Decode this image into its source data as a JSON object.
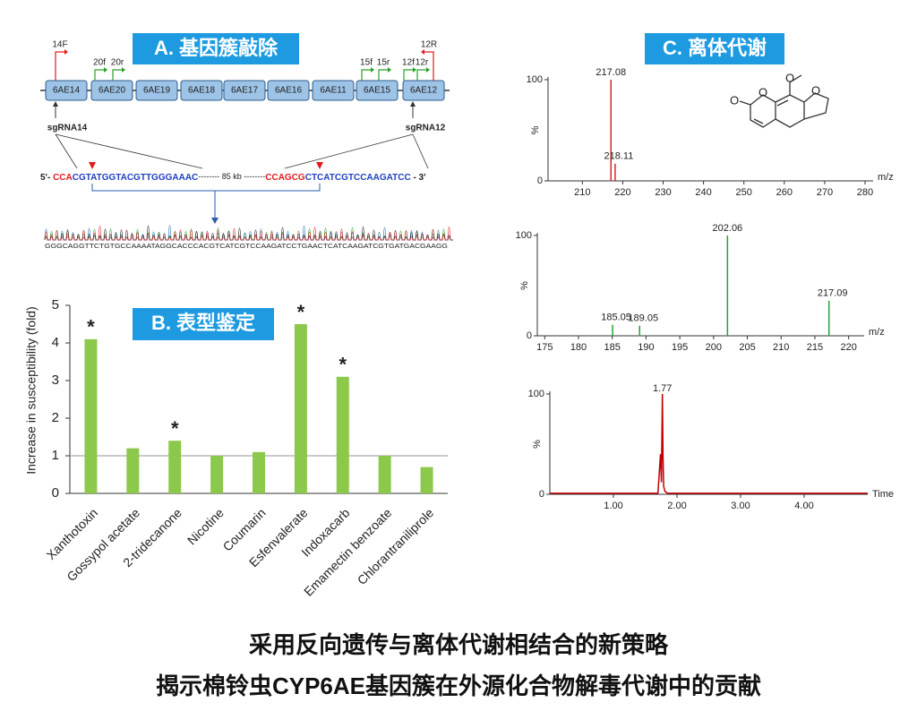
{
  "panel_a": {
    "title": "A. 基因簇敲除",
    "genes": [
      "6AE14",
      "6AE20",
      "6AE19",
      "6AE18",
      "6AE17",
      "6AE16",
      "6AE11",
      "6AE15",
      "6AE12"
    ],
    "primers": [
      "14F",
      "20f",
      "20r",
      "15f",
      "15r",
      "12f",
      "12r",
      "12R"
    ],
    "sgrnas": [
      "sgRNA14",
      "sgRNA12"
    ],
    "sequence": [
      "5'- ",
      "CCA",
      "CGTATGGTACGTTGGGAAAC",
      "-------- 85 kb --------",
      "CCAGCG",
      "CTCATCGTCCAAGATCC",
      " - 3'"
    ],
    "trace": "GGGCAGGTTCTGTGCCAAAATAGGCACCCACGTCATCGTCCAAGATCCTGAACTCATCAAGATCGTGATGACGAAGG"
  },
  "panel_b_title": "B. 表型鉴定",
  "panel_c": {
    "title": "C. 离体代谢",
    "structure_labels": [
      "O",
      "O",
      "O",
      "O"
    ]
  },
  "chart_data": [
    {
      "type": "bar",
      "y_label": "Increase in susceptibility (fold)",
      "categories": [
        "Xanthotoxin",
        "Gossypol acetate",
        "2-tridecanone",
        "Nicotine",
        "Coumarin",
        "Esfenvalerate",
        "Indoxacarb",
        "Emamectin benzoate",
        "Chlorantraniliprole"
      ],
      "values": [
        4.1,
        1.2,
        1.4,
        1.0,
        1.1,
        4.5,
        3.1,
        1.0,
        0.7
      ],
      "color": "#8cc84b",
      "ylim": [
        0,
        5
      ],
      "yticks": [
        0,
        1,
        2,
        3,
        4,
        5
      ],
      "hline": 1,
      "annotations": [
        {
          "text": "*",
          "at": "Xanthotoxin"
        },
        {
          "text": "*",
          "at": "2-tridecanone"
        },
        {
          "text": "*",
          "at": "Esfenvalerate"
        },
        {
          "text": "*",
          "at": "Indoxacarb"
        }
      ]
    },
    {
      "type": "spectrum",
      "x_label": "m/z",
      "y_label": "%",
      "color": "#d62728",
      "x": [
        217.08,
        218.11
      ],
      "values": [
        100,
        17
      ],
      "xlim": [
        201.5,
        282
      ],
      "xticks": [
        210,
        220,
        230,
        240,
        250,
        260,
        270,
        280
      ],
      "ylim": [
        0,
        100
      ],
      "yticks": [
        0,
        100
      ]
    },
    {
      "type": "spectrum",
      "x_label": "m/z",
      "y_label": "%",
      "color": "#2ca02c",
      "x": [
        185.05,
        189.05,
        202.06,
        217.09
      ],
      "values": [
        11,
        10,
        100,
        35
      ],
      "xlim": [
        173.9,
        222.3
      ],
      "xticks": [
        175,
        180,
        185,
        190,
        195,
        200,
        205,
        210,
        215,
        220
      ],
      "ylim": [
        0,
        100
      ],
      "yticks": [
        0,
        100
      ]
    },
    {
      "type": "line",
      "x_label": "Time",
      "y_label": "%",
      "color": "#c00000",
      "peak_label": 1.77,
      "x": [
        0,
        1.7,
        1.74,
        1.755,
        1.77,
        1.78,
        1.79,
        1.81,
        1.85,
        5
      ],
      "values": [
        1,
        1,
        40,
        12,
        100,
        38,
        8,
        3,
        1,
        1
      ],
      "xlim": [
        0,
        5
      ],
      "xticks": [
        {
          "value": 1,
          "label": "1.00"
        },
        {
          "value": 2,
          "label": "2.00"
        },
        {
          "value": 3,
          "label": "3.00"
        },
        {
          "value": 4,
          "label": "4.00"
        }
      ],
      "ylim": [
        0,
        100
      ],
      "yticks": [
        0,
        100
      ]
    }
  ],
  "caption": [
    "采用反向遗传与离体代谢相结合的新策略",
    "揭示棉铃虫CYP6AE基因簇在外源化合物解毒代谢中的贡献"
  ]
}
